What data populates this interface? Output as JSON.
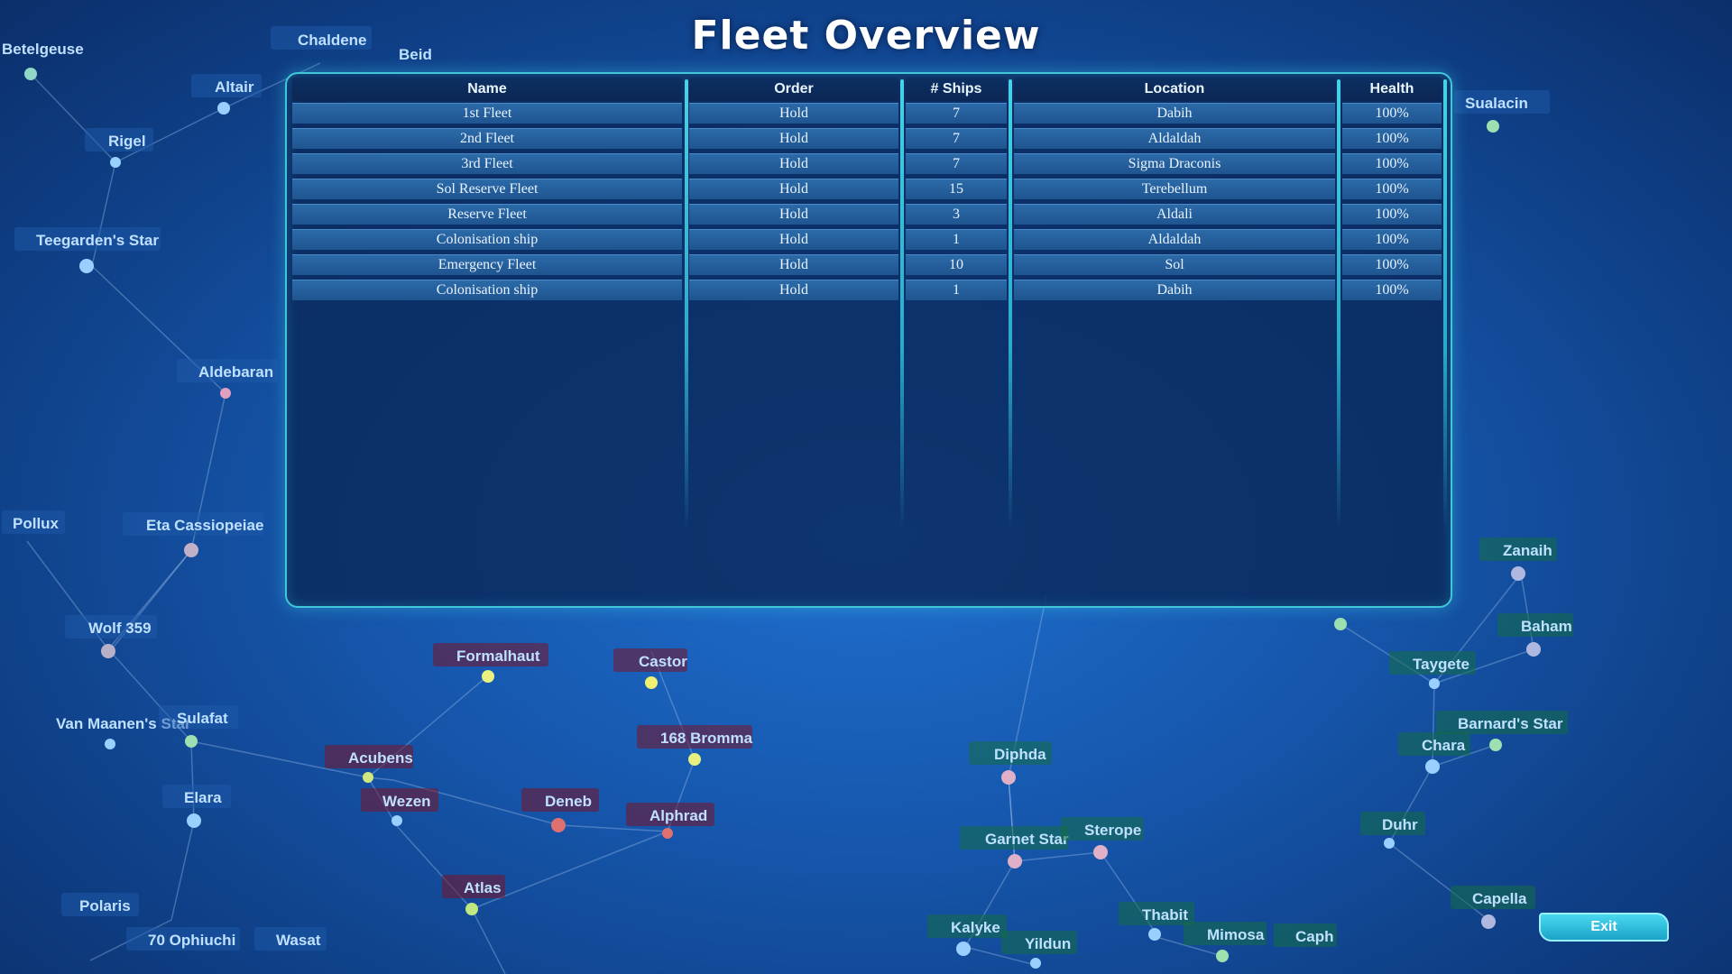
{
  "title": "Fleet Overview",
  "fleet_table": {
    "columns": [
      "Name",
      "Order",
      "# Ships",
      "Location",
      "Health"
    ],
    "rows": [
      {
        "name": "1st Fleet",
        "order": "Hold",
        "ships": "7",
        "location": "Dabih",
        "health": "100%"
      },
      {
        "name": "2nd Fleet",
        "order": "Hold",
        "ships": "7",
        "location": "Aldaldah",
        "health": "100%"
      },
      {
        "name": "3rd Fleet",
        "order": "Hold",
        "ships": "7",
        "location": "Sigma Draconis",
        "health": "100%"
      },
      {
        "name": "Sol Reserve Fleet",
        "order": "Hold",
        "ships": "15",
        "location": "Terebellum",
        "health": "100%"
      },
      {
        "name": "Reserve Fleet",
        "order": "Hold",
        "ships": "3",
        "location": "Aldali",
        "health": "100%"
      },
      {
        "name": "Colonisation ship",
        "order": "Hold",
        "ships": "1",
        "location": "Aldaldah",
        "health": "100%"
      },
      {
        "name": "Emergency Fleet",
        "order": "Hold",
        "ships": "10",
        "location": "Sol",
        "health": "100%"
      },
      {
        "name": "Colonisation ship",
        "order": "Hold",
        "ships": "1",
        "location": "Dabih",
        "health": "100%"
      }
    ]
  },
  "exit_label": "Exit",
  "stars": [
    {
      "name": "Betelgeuse",
      "faction": "blue"
    },
    {
      "name": "Chaldene",
      "faction": "blue"
    },
    {
      "name": "Beid",
      "faction": "blue"
    },
    {
      "name": "Altair",
      "faction": "blue"
    },
    {
      "name": "Rigel",
      "faction": "blue"
    },
    {
      "name": "Teegarden's Star",
      "faction": "blue"
    },
    {
      "name": "Aldebaran",
      "faction": "blue"
    },
    {
      "name": "Pollux",
      "faction": "blue"
    },
    {
      "name": "Eta Cassiopeiae",
      "faction": "blue"
    },
    {
      "name": "Wolf 359",
      "faction": "blue"
    },
    {
      "name": "Van Maanen's Star",
      "faction": "blue"
    },
    {
      "name": "Sulafat",
      "faction": "blue"
    },
    {
      "name": "Elara",
      "faction": "blue"
    },
    {
      "name": "Polaris",
      "faction": "blue"
    },
    {
      "name": "70 Ophiuchi",
      "faction": "blue"
    },
    {
      "name": "Wasat",
      "faction": "blue"
    },
    {
      "name": "Sualacin",
      "faction": "blue"
    },
    {
      "name": "Formalhaut",
      "faction": "red"
    },
    {
      "name": "Castor",
      "faction": "red"
    },
    {
      "name": "168 Bromma",
      "faction": "red"
    },
    {
      "name": "Acubens",
      "faction": "red"
    },
    {
      "name": "Wezen",
      "faction": "red"
    },
    {
      "name": "Deneb",
      "faction": "red"
    },
    {
      "name": "Alphrad",
      "faction": "red"
    },
    {
      "name": "Atlas",
      "faction": "red"
    },
    {
      "name": "Diphda",
      "faction": "green"
    },
    {
      "name": "Garnet Star",
      "faction": "green"
    },
    {
      "name": "Sterope",
      "faction": "green"
    },
    {
      "name": "Kalyke",
      "faction": "green"
    },
    {
      "name": "Yildun",
      "faction": "green"
    },
    {
      "name": "Thabit",
      "faction": "green"
    },
    {
      "name": "Mimosa",
      "faction": "green"
    },
    {
      "name": "Caph",
      "faction": "green"
    },
    {
      "name": "Zanaih",
      "faction": "green"
    },
    {
      "name": "Baham",
      "faction": "green"
    },
    {
      "name": "Taygete",
      "faction": "green"
    },
    {
      "name": "Barnard's Star",
      "faction": "green"
    },
    {
      "name": "Chara",
      "faction": "green"
    },
    {
      "name": "Duhr",
      "faction": "green"
    },
    {
      "name": "Capella",
      "faction": "green"
    }
  ],
  "colors": {
    "panel_border": "#3fc7d9",
    "row_fill": "#2b6aa8",
    "exit_button": "#1aa3c9"
  }
}
